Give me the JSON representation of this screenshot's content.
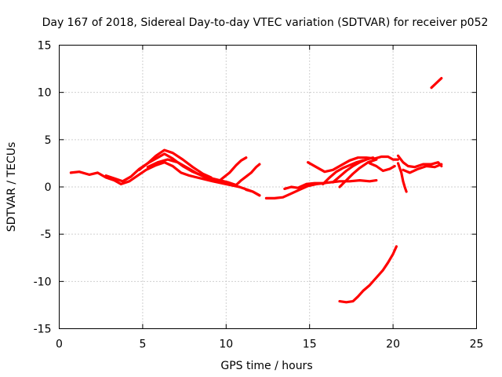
{
  "chart_data": {
    "type": "line",
    "title": "Day 167 of 2018, Sidereal Day-to-day VTEC variation (SDTVAR) for receiver p052",
    "xlabel": "GPS time / hours",
    "ylabel": "SDTVAR / TECUs",
    "xlim": [
      0,
      25
    ],
    "ylim": [
      -15,
      15
    ],
    "x_ticks": [
      0,
      5,
      10,
      15,
      20,
      25
    ],
    "y_ticks": [
      -15,
      -10,
      -5,
      0,
      5,
      10,
      15
    ],
    "x_tick_labels": [
      "0",
      "5",
      "10",
      "15",
      "20",
      "25"
    ],
    "y_tick_labels": [
      "-15",
      "-10",
      "-5",
      "0",
      "5",
      "10",
      "15"
    ],
    "grid": true,
    "color": "#ff0000",
    "series": [
      {
        "name": "track-1",
        "points": [
          [
            0.7,
            1.5
          ],
          [
            1.2,
            1.6
          ],
          [
            1.8,
            1.3
          ],
          [
            2.3,
            1.5
          ],
          [
            2.8,
            1.0
          ],
          [
            3.3,
            0.7
          ],
          [
            3.7,
            0.3
          ],
          [
            4.2,
            0.6
          ],
          [
            4.7,
            1.2
          ],
          [
            5.2,
            1.8
          ],
          [
            5.8,
            2.3
          ],
          [
            6.3,
            2.6
          ],
          [
            6.8,
            2.2
          ],
          [
            7.3,
            1.5
          ],
          [
            7.8,
            1.2
          ],
          [
            8.5,
            0.9
          ],
          [
            9.2,
            0.6
          ],
          [
            10.0,
            0.3
          ],
          [
            10.8,
            0.0
          ],
          [
            11.6,
            -0.5
          ],
          [
            12.0,
            -0.9
          ]
        ]
      },
      {
        "name": "track-2",
        "points": [
          [
            2.8,
            1.2
          ],
          [
            3.3,
            0.9
          ],
          [
            3.8,
            0.6
          ],
          [
            4.3,
            1.1
          ],
          [
            4.8,
            1.9
          ],
          [
            5.3,
            2.5
          ],
          [
            5.9,
            3.1
          ],
          [
            6.3,
            3.5
          ],
          [
            6.8,
            3.0
          ],
          [
            7.4,
            2.2
          ],
          [
            8.0,
            1.6
          ],
          [
            8.7,
            1.1
          ],
          [
            9.4,
            0.8
          ],
          [
            10.1,
            0.5
          ],
          [
            10.6,
            0.2
          ]
        ]
      },
      {
        "name": "track-3",
        "points": [
          [
            4.8,
            1.8
          ],
          [
            5.3,
            2.5
          ],
          [
            5.8,
            3.3
          ],
          [
            6.3,
            3.9
          ],
          [
            6.8,
            3.6
          ],
          [
            7.4,
            2.9
          ],
          [
            8.0,
            2.1
          ],
          [
            8.6,
            1.4
          ],
          [
            9.1,
            1.0
          ]
        ]
      },
      {
        "name": "track-4",
        "points": [
          [
            5.3,
            2.1
          ],
          [
            5.9,
            2.6
          ],
          [
            6.5,
            2.9
          ],
          [
            7.1,
            2.6
          ],
          [
            7.7,
            2.0
          ],
          [
            8.3,
            1.4
          ],
          [
            8.9,
            0.9
          ],
          [
            9.6,
            0.6
          ],
          [
            10.2,
            0.4
          ]
        ]
      },
      {
        "name": "track-5",
        "points": [
          [
            9.7,
            0.8
          ],
          [
            10.2,
            1.5
          ],
          [
            10.6,
            2.3
          ],
          [
            10.9,
            2.8
          ],
          [
            11.2,
            3.1
          ]
        ]
      },
      {
        "name": "track-6",
        "points": [
          [
            10.6,
            0.2
          ],
          [
            10.9,
            0.7
          ],
          [
            11.2,
            1.1
          ],
          [
            11.5,
            1.5
          ],
          [
            11.8,
            2.1
          ],
          [
            12.0,
            2.4
          ]
        ]
      },
      {
        "name": "track-7",
        "points": [
          [
            11.2,
            -0.3
          ],
          [
            11.6,
            -0.5
          ],
          [
            12.0,
            -0.9
          ]
        ]
      },
      {
        "name": "track-8",
        "points": [
          [
            12.4,
            -1.2
          ],
          [
            12.9,
            -1.2
          ],
          [
            13.4,
            -1.1
          ],
          [
            13.9,
            -0.7
          ],
          [
            14.4,
            -0.3
          ],
          [
            14.9,
            0.1
          ],
          [
            15.4,
            0.3
          ],
          [
            15.9,
            0.4
          ]
        ]
      },
      {
        "name": "track-9",
        "points": [
          [
            13.5,
            -0.2
          ],
          [
            13.9,
            0.0
          ],
          [
            14.3,
            -0.1
          ],
          [
            14.8,
            0.3
          ],
          [
            15.3,
            0.4
          ],
          [
            15.8,
            0.4
          ],
          [
            16.3,
            0.5
          ],
          [
            16.8,
            0.6
          ],
          [
            17.4,
            0.6
          ],
          [
            18.0,
            0.7
          ],
          [
            18.6,
            0.6
          ],
          [
            19.0,
            0.7
          ]
        ]
      },
      {
        "name": "track-10",
        "points": [
          [
            14.9,
            2.6
          ],
          [
            15.4,
            2.1
          ],
          [
            15.9,
            1.6
          ],
          [
            16.4,
            1.8
          ],
          [
            16.9,
            2.3
          ],
          [
            17.4,
            2.8
          ],
          [
            17.9,
            3.1
          ],
          [
            18.4,
            3.1
          ],
          [
            18.9,
            3.0
          ],
          [
            19.3,
            3.2
          ],
          [
            19.7,
            3.2
          ],
          [
            20.0,
            2.9
          ],
          [
            20.3,
            2.9
          ]
        ]
      },
      {
        "name": "track-11",
        "points": [
          [
            15.8,
            0.3
          ],
          [
            16.2,
            1.0
          ],
          [
            16.6,
            1.6
          ],
          [
            17.0,
            2.0
          ],
          [
            17.4,
            2.3
          ],
          [
            17.8,
            2.6
          ],
          [
            18.2,
            2.8
          ]
        ]
      },
      {
        "name": "track-12",
        "points": [
          [
            16.4,
            0.5
          ],
          [
            16.8,
            1.1
          ],
          [
            17.2,
            1.7
          ],
          [
            17.6,
            2.2
          ],
          [
            18.0,
            2.6
          ],
          [
            18.4,
            2.9
          ],
          [
            18.8,
            3.1
          ]
        ]
      },
      {
        "name": "track-13",
        "points": [
          [
            16.8,
            0.0
          ],
          [
            17.2,
            0.7
          ],
          [
            17.6,
            1.4
          ],
          [
            18.0,
            2.0
          ],
          [
            18.5,
            2.6
          ],
          [
            19.0,
            2.9
          ]
        ]
      },
      {
        "name": "track-14",
        "points": [
          [
            18.6,
            2.5
          ],
          [
            19.0,
            2.2
          ],
          [
            19.4,
            1.7
          ],
          [
            19.8,
            1.9
          ],
          [
            20.1,
            2.2
          ]
        ]
      },
      {
        "name": "track-15",
        "points": [
          [
            20.3,
            3.3
          ],
          [
            20.6,
            2.6
          ],
          [
            20.9,
            2.2
          ],
          [
            21.3,
            2.1
          ],
          [
            21.8,
            2.4
          ],
          [
            22.3,
            2.4
          ],
          [
            22.7,
            2.6
          ],
          [
            22.9,
            2.2
          ]
        ]
      },
      {
        "name": "track-16",
        "points": [
          [
            20.3,
            2.5
          ],
          [
            20.5,
            1.5
          ],
          [
            20.6,
            0.6
          ],
          [
            20.7,
            0.0
          ],
          [
            20.8,
            -0.5
          ]
        ]
      },
      {
        "name": "track-17",
        "points": [
          [
            20.6,
            1.8
          ],
          [
            21.0,
            1.5
          ],
          [
            21.5,
            1.9
          ],
          [
            22.0,
            2.2
          ],
          [
            22.5,
            2.1
          ],
          [
            22.9,
            2.4
          ]
        ]
      },
      {
        "name": "track-18",
        "points": [
          [
            16.8,
            -12.1
          ],
          [
            17.2,
            -12.2
          ],
          [
            17.6,
            -12.1
          ],
          [
            17.9,
            -11.6
          ],
          [
            18.2,
            -11.0
          ],
          [
            18.6,
            -10.4
          ],
          [
            19.0,
            -9.6
          ],
          [
            19.4,
            -8.8
          ],
          [
            19.7,
            -8.0
          ],
          [
            20.0,
            -7.1
          ],
          [
            20.2,
            -6.3
          ]
        ]
      },
      {
        "name": "track-19",
        "points": [
          [
            22.3,
            10.5
          ],
          [
            22.6,
            11.0
          ],
          [
            22.9,
            11.5
          ]
        ]
      }
    ]
  }
}
